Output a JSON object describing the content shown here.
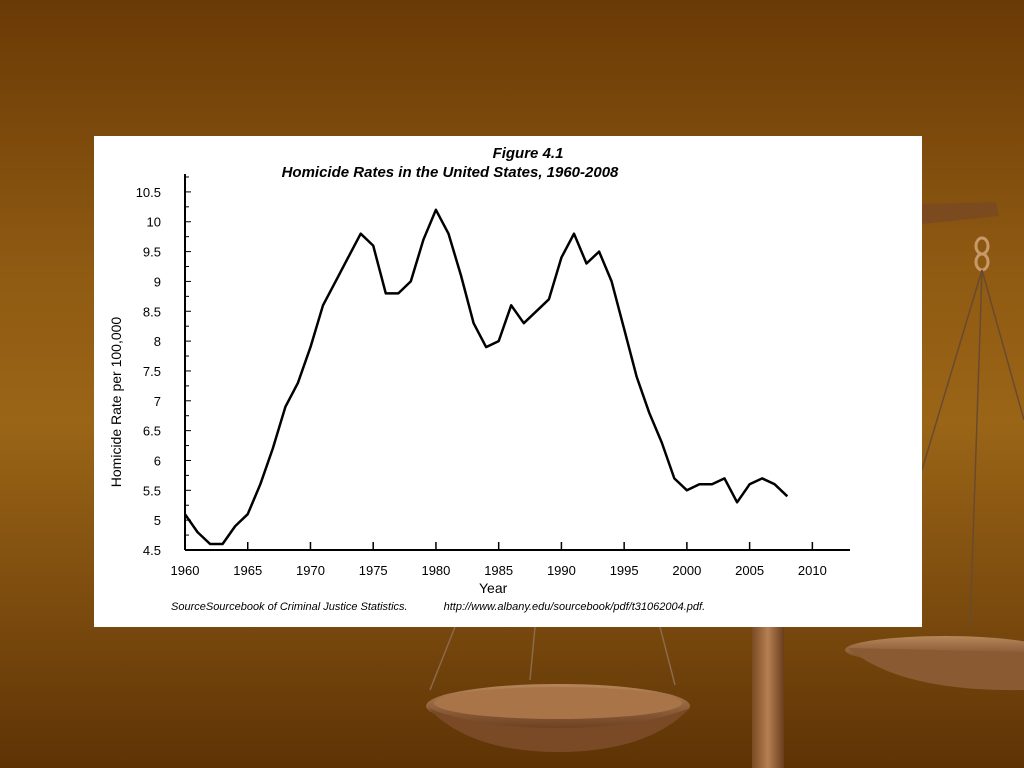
{
  "chart_data": {
    "type": "line",
    "title": "Figure 4.1",
    "subtitle": "Homicide Rates in the United States, 1960-2008",
    "xlabel": "Year",
    "ylabel": "Homicide Rate per 100,000",
    "xlim": [
      1960,
      2013
    ],
    "ylim": [
      4.5,
      10.8
    ],
    "x_ticks": [
      "1960",
      "1965",
      "1970",
      "1975",
      "1980",
      "1985",
      "1990",
      "1995",
      "2000",
      "2005",
      "2010"
    ],
    "y_ticks": [
      "4.5",
      "5",
      "5.5",
      "6",
      "6.5",
      "7",
      "7.5",
      "8",
      "8.5",
      "9",
      "9.5",
      "10",
      "10.5"
    ],
    "grid": false,
    "series": [
      {
        "x": [
          1960,
          1961,
          1962,
          1963,
          1964,
          1965,
          1966,
          1967,
          1968,
          1969,
          1970,
          1971,
          1972,
          1973,
          1974,
          1975,
          1976,
          1977,
          1978,
          1979,
          1980,
          1981,
          1982,
          1983,
          1984,
          1985,
          1986,
          1987,
          1988,
          1989,
          1990,
          1991,
          1992,
          1993,
          1994,
          1995,
          1996,
          1997,
          1998,
          1999,
          2000,
          2001,
          2002,
          2003,
          2004,
          2005,
          2006,
          2007,
          2008
        ],
        "values": [
          5.1,
          4.8,
          4.6,
          4.6,
          4.9,
          5.1,
          5.6,
          6.2,
          6.9,
          7.3,
          7.9,
          8.6,
          9.0,
          9.4,
          9.8,
          9.6,
          8.8,
          8.8,
          9.0,
          9.7,
          10.2,
          9.8,
          9.1,
          8.3,
          7.9,
          8.0,
          8.6,
          8.3,
          8.5,
          8.7,
          9.4,
          9.8,
          9.3,
          9.5,
          9.0,
          8.2,
          7.4,
          6.8,
          6.3,
          5.7,
          5.5,
          5.6,
          5.6,
          5.7,
          5.3,
          5.6,
          5.7,
          5.6,
          5.4
        ]
      }
    ],
    "source_label": "SourceSourcebook of Criminal Justice Statistics.",
    "source_url": "http://www.albany.edu/sourcebook/pdf/t31062004.pdf."
  }
}
